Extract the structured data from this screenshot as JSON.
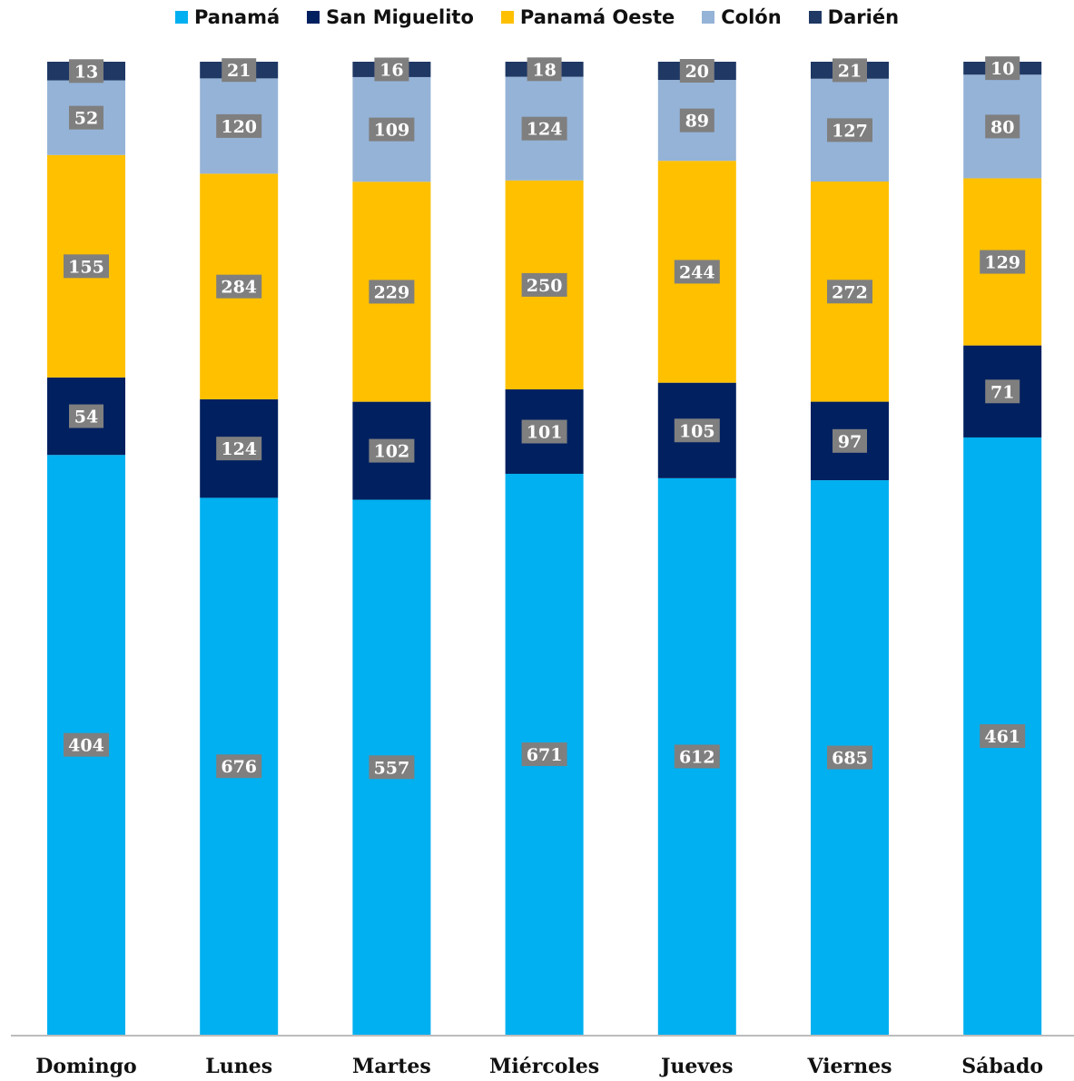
{
  "chart_data": {
    "type": "bar",
    "stacked": true,
    "categories": [
      "Domingo",
      "Lunes",
      "Martes",
      "Miércoles",
      "Jueves",
      "Viernes",
      "Sábado"
    ],
    "series": [
      {
        "name": "Panamá",
        "color": "#00B0F0",
        "values": [
          404,
          676,
          557,
          671,
          612,
          685,
          461
        ]
      },
      {
        "name": "San Miguelito",
        "color": "#002060",
        "values": [
          54,
          124,
          102,
          101,
          105,
          97,
          71
        ]
      },
      {
        "name": "Panamá Oeste",
        "color": "#FFC000",
        "values": [
          155,
          284,
          229,
          250,
          244,
          272,
          129
        ]
      },
      {
        "name": "Colón",
        "color": "#95B3D7",
        "values": [
          52,
          120,
          109,
          124,
          89,
          127,
          80
        ]
      },
      {
        "name": "Darién",
        "color": "#1F3864",
        "values": [
          13,
          21,
          16,
          18,
          20,
          21,
          10
        ]
      }
    ],
    "normalized": true,
    "ylim": [
      0,
      100
    ],
    "legend_position": "top",
    "grid": false,
    "data_label_background": "#7F7F7F",
    "title": "",
    "xlabel": "",
    "ylabel": ""
  }
}
